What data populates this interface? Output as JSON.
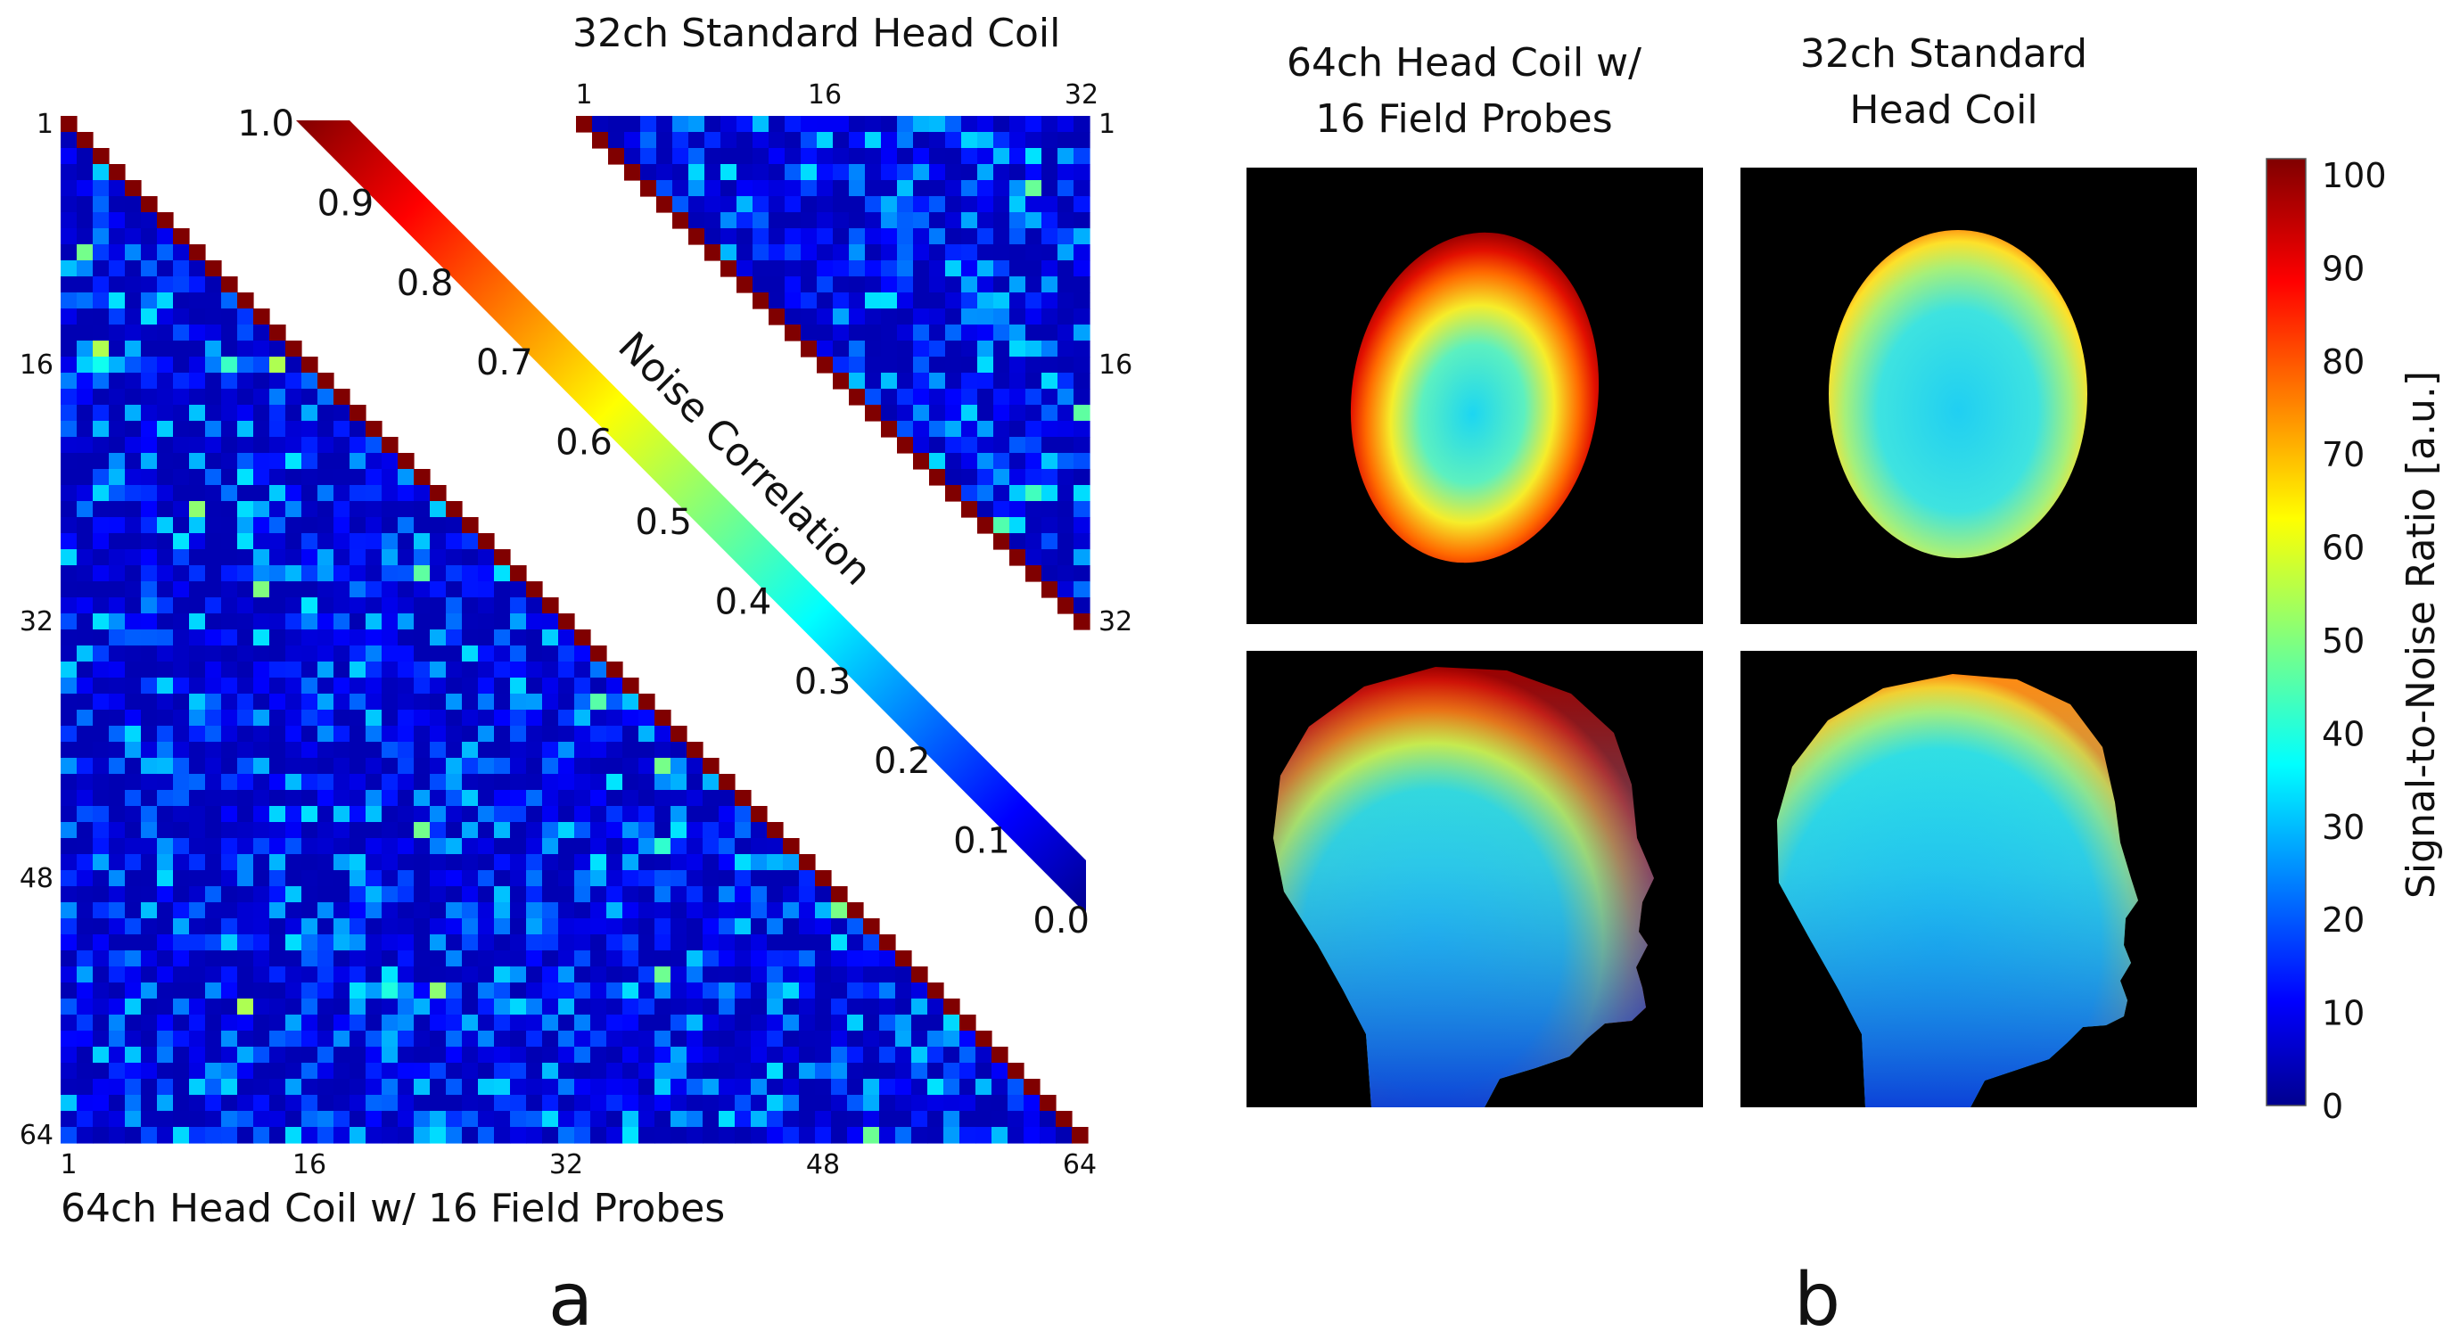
{
  "chart_data": [
    {
      "type": "heatmap",
      "panel": "a",
      "title": "64ch Head Coil w/ 16 Field Probes",
      "matrix_size": 64,
      "triangle": "lower",
      "ticks": [
        "1",
        "16",
        "32",
        "48",
        "64"
      ],
      "diagonal_value": 1.0,
      "typical_offdiag_range": [
        0.05,
        0.35
      ],
      "peak_offdiag_value": 0.55
    },
    {
      "type": "heatmap",
      "panel": "a",
      "title": "32ch Standard Head Coil",
      "matrix_size": 32,
      "triangle": "upper",
      "ticks": [
        "1",
        "16",
        "32"
      ],
      "diagonal_value": 1.0,
      "typical_offdiag_range": [
        0.05,
        0.35
      ],
      "peak_offdiag_value": 0.5
    },
    {
      "type": "colorbar",
      "panel": "a",
      "label": "Noise Correlation",
      "vmin": 0.0,
      "vmax": 1.0,
      "ticks": [
        "0.0",
        "0.1",
        "0.2",
        "0.3",
        "0.4",
        "0.5",
        "0.6",
        "0.7",
        "0.8",
        "0.9",
        "1.0"
      ]
    },
    {
      "type": "heatmap",
      "panel": "b",
      "columns": [
        "64ch Head Coil w/ 16 Field Probes",
        "32ch Standard Head Coil"
      ],
      "rows": [
        "axial",
        "sagittal"
      ],
      "colorbar": {
        "label": "Signal-to-Noise Ratio [a.u.]",
        "vmin": 0,
        "vmax": 100,
        "ticks": [
          "0",
          "10",
          "20",
          "30",
          "40",
          "50",
          "60",
          "70",
          "80",
          "90",
          "100"
        ]
      },
      "snr_center": {
        "64ch": 30,
        "32ch": 33
      },
      "snr_periphery": {
        "64ch": 95,
        "32ch": 65
      }
    }
  ],
  "labels": {
    "lower_title": "64ch Head Coil w/ 16 Field Probes",
    "upper_title": "32ch Standard Head Coil",
    "noise_label": "Noise Correlation",
    "col1_line1": "64ch Head Coil w/",
    "col1_line2": "16 Field Probes",
    "col2_line1": "32ch Standard",
    "col2_line2": "Head Coil",
    "snr_label": "Signal-to-Noise Ratio [a.u.]",
    "panel_a": "a",
    "panel_b": "b"
  }
}
